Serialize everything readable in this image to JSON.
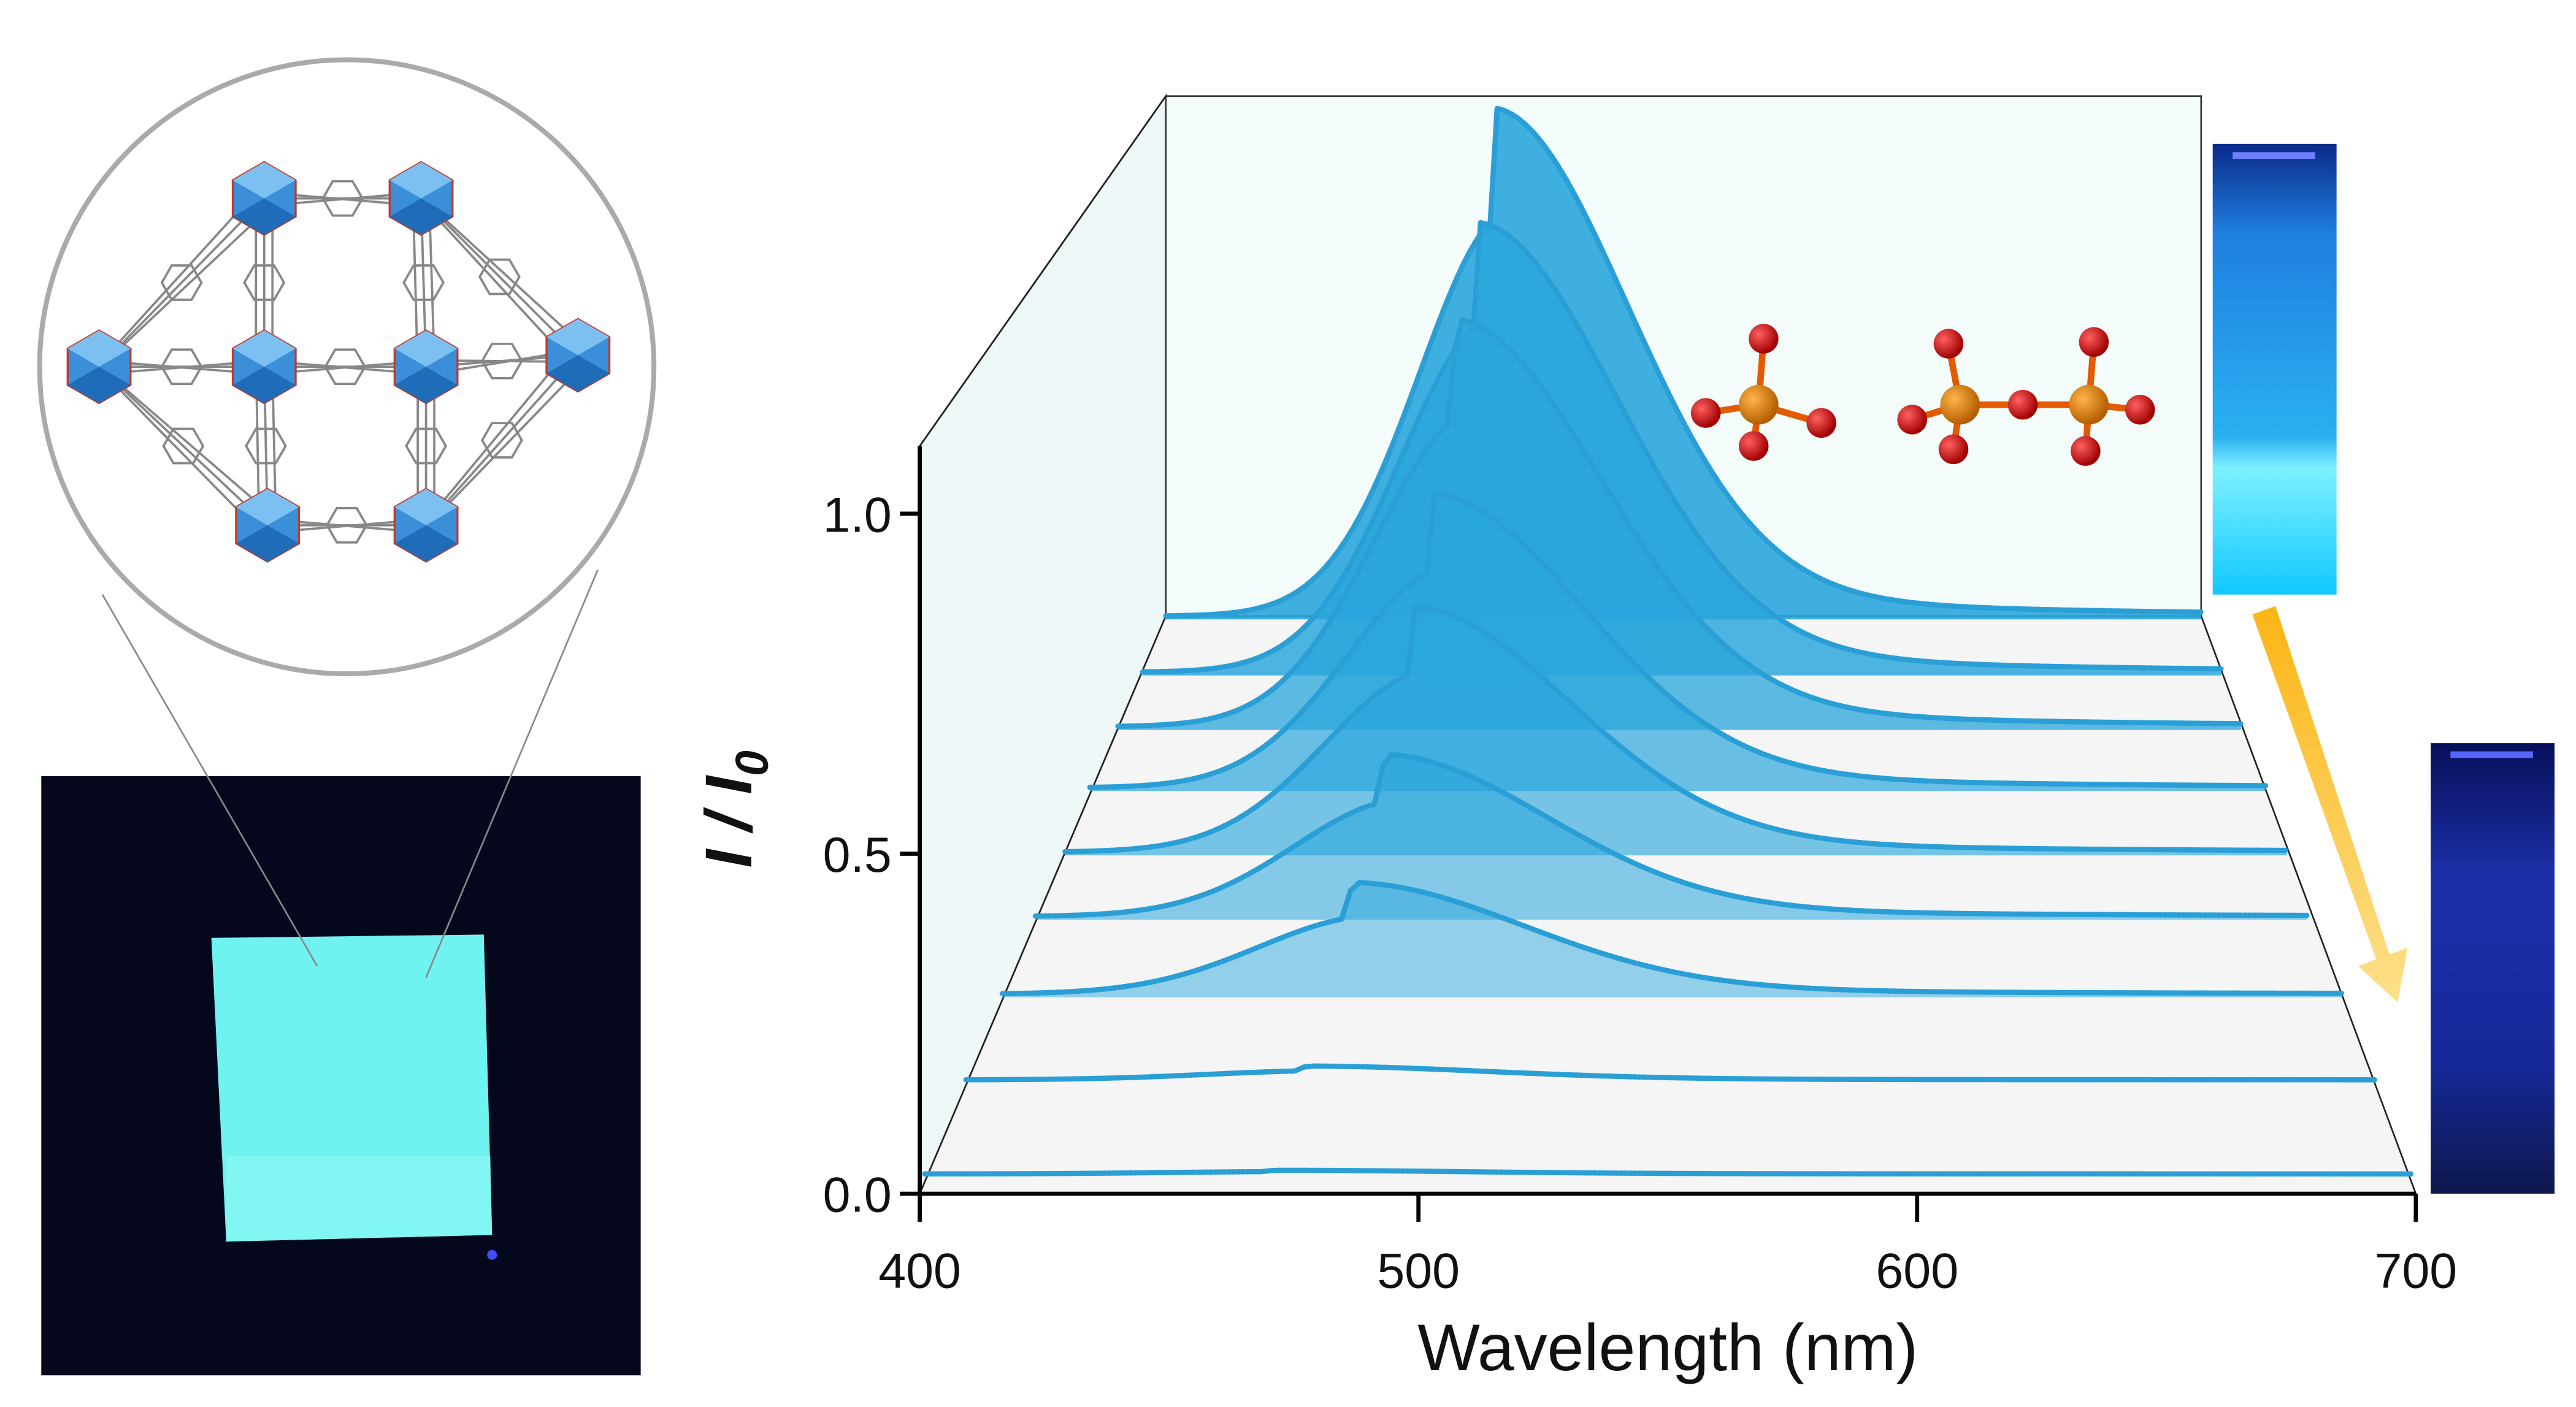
{
  "chart_data": {
    "type": "line",
    "subtype": "3d-waterfall",
    "title": "",
    "xlabel": "Wavelength (nm)",
    "ylabel": {
      "main": "I / I",
      "subscript": "0"
    },
    "xlim": [
      400,
      700
    ],
    "ylim": [
      0,
      1.0
    ],
    "xticks": [
      "400",
      "500",
      "600",
      "700"
    ],
    "yticks": [
      "0.0",
      "0.5",
      "1.0"
    ],
    "grid": false,
    "series_order": "front-to-back",
    "series": [
      {
        "peak_wavelength": 470,
        "peak_intensity": 0.005
      },
      {
        "peak_wavelength": 472,
        "peak_intensity": 0.02
      },
      {
        "peak_wavelength": 478,
        "peak_intensity": 0.17
      },
      {
        "peak_wavelength": 482,
        "peak_intensity": 0.26
      },
      {
        "peak_wavelength": 485,
        "peak_intensity": 0.41
      },
      {
        "peak_wavelength": 487,
        "peak_intensity": 0.51
      },
      {
        "peak_wavelength": 490,
        "peak_intensity": 0.74
      },
      {
        "peak_wavelength": 493,
        "peak_intensity": 0.85
      },
      {
        "peak_wavelength": 495,
        "peak_intensity": 1.0
      }
    ]
  },
  "colors": {
    "trace": "#2a9fd6",
    "fill": "#2aa6dc",
    "arrow": "#fbbf24",
    "phosphorus": "#d97a0a",
    "oxygen": "#d10000"
  },
  "icons": [
    "mof-structure-inset",
    "luminescent-film-photo",
    "phosphate-molecule",
    "pyrophosphate-molecule",
    "bright-vial-photo",
    "quenched-vial-photo",
    "quench-arrow"
  ]
}
